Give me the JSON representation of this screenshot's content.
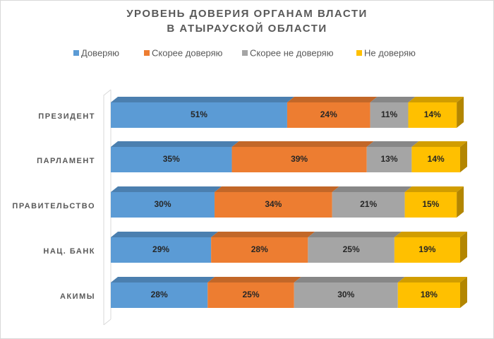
{
  "chart_data": {
    "type": "bar3d_stacked_horizontal",
    "title": [
      "УРОВЕНЬ ДОВЕРИЯ ОРГАНАМ ВЛАСТИ",
      "В АТЫРАУСКОЙ ОБЛАСТИ"
    ],
    "categories": [
      "ПРЕЗИДЕНТ",
      "ПАРЛАМЕНТ",
      "ПРАВИТЕЛЬСТВО",
      "НАЦ. БАНК",
      "АКИМЫ"
    ],
    "series": [
      {
        "name": "Доверяю",
        "color": "#5b9bd5",
        "values": [
          51,
          35,
          30,
          29,
          28
        ],
        "value_labels": [
          "51%",
          "35%",
          "30%",
          "29%",
          "28%"
        ]
      },
      {
        "name": "Скорее доверяю",
        "color": "#ed7d31",
        "values": [
          24,
          39,
          34,
          28,
          25
        ],
        "value_labels": [
          "24%",
          "39%",
          "34%",
          "28%",
          "25%"
        ]
      },
      {
        "name": "Скорее не доверяю",
        "color": "#a5a5a5",
        "values": [
          11,
          13,
          21,
          25,
          30
        ],
        "value_labels": [
          "11%",
          "13%",
          "21%",
          "25%",
          "30%"
        ]
      },
      {
        "name": "Не доверяю",
        "color": "#ffc000",
        "values": [
          14,
          14,
          15,
          19,
          18
        ],
        "value_labels": [
          "14%",
          "14%",
          "15%",
          "19%",
          "18%"
        ]
      }
    ],
    "xlim": [
      0,
      101
    ],
    "legend": "top"
  }
}
